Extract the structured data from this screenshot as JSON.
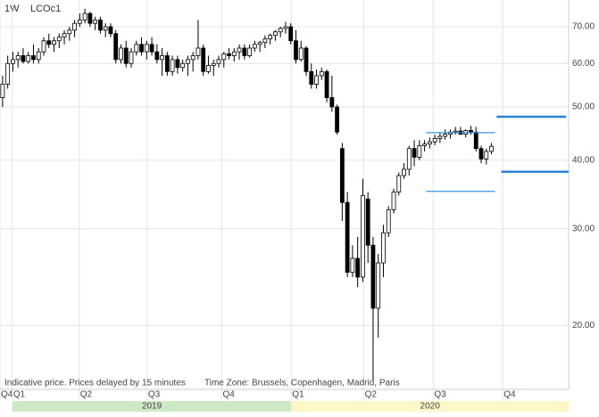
{
  "chart_data": {
    "type": "candlestick",
    "interval": "1W",
    "symbol": "LCOc1",
    "notes": [
      "Indicative price. Prices delayed by 15 minutes",
      "Time Zone: Brussels, Copenhagen, Madrid, Paris"
    ],
    "log_scale": true,
    "grid": true,
    "up_color": "#ffffff",
    "down_color": "#000000",
    "xlim": [
      -0.5,
      110
    ],
    "xticks": [
      {
        "value": -0.5,
        "label": "Q4"
      },
      {
        "value": 1.9,
        "label": "Q1"
      },
      {
        "value": 14.9,
        "label": "Q2"
      },
      {
        "value": 28.1,
        "label": "Q3"
      },
      {
        "value": 42.6,
        "label": "Q4"
      },
      {
        "value": 56.1,
        "label": "Q1"
      },
      {
        "value": 70.2,
        "label": "Q2"
      },
      {
        "value": 83.7,
        "label": "Q3"
      },
      {
        "value": 97.2,
        "label": "Q4"
      }
    ],
    "periods": [
      {
        "label": "2019",
        "start": 1.9,
        "end": 56.1,
        "color": "#cfe8c6"
      },
      {
        "label": "2020",
        "start": 56.1,
        "end": 110,
        "color": "#fbf7c6"
      }
    ],
    "ylim": [
      15.3,
      78.3
    ],
    "yticks": [
      {
        "value": 20,
        "label": "20.00"
      },
      {
        "value": 30,
        "label": "30.00"
      },
      {
        "value": 40,
        "label": "40.00"
      },
      {
        "value": 50,
        "label": "50.00"
      },
      {
        "value": 60,
        "label": "60.00"
      },
      {
        "value": 70,
        "label": "70.00"
      }
    ],
    "open": [
      52,
      55,
      60,
      61,
      62,
      60.5,
      62,
      61,
      63,
      66,
      65,
      66,
      67,
      68,
      69,
      71,
      72,
      74,
      71,
      72,
      69,
      70,
      68,
      61,
      64,
      60,
      63,
      65,
      63,
      65,
      63,
      61,
      62,
      58,
      61,
      59,
      60,
      61,
      62,
      64,
      58,
      59.5,
      60,
      61,
      62.5,
      62,
      63,
      64,
      62,
      64,
      65,
      65.5,
      66.5,
      67.5,
      68.5,
      69.5,
      70,
      66,
      61,
      64,
      58,
      55,
      57,
      58,
      52,
      50,
      42,
      33.5,
      25,
      26.5,
      24.5,
      34,
      28,
      21.5,
      26,
      29.5,
      32.5,
      35,
      37.5,
      38.5,
      42,
      40.5,
      42.5,
      42.8,
      43.2,
      43.8,
      44.2,
      44.6,
      45,
      45.2,
      44.6,
      45.3,
      45,
      42,
      40.2,
      41.5
    ],
    "high": [
      57,
      62,
      63,
      63,
      64,
      63,
      65,
      64,
      67,
      68,
      67,
      68,
      69,
      70,
      72,
      74,
      75.5,
      74.5,
      73,
      73,
      71,
      71,
      69,
      65,
      66,
      64,
      66,
      67,
      66,
      67,
      65,
      64,
      63,
      62,
      62,
      61,
      62,
      63,
      72,
      65,
      62,
      61,
      62,
      63,
      64,
      64,
      65,
      65,
      65,
      66,
      66,
      67.5,
      68,
      69,
      70,
      71.5,
      71,
      69,
      66,
      64.5,
      60,
      58.5,
      59,
      58.5,
      57,
      50.5,
      43,
      35,
      28,
      29,
      37,
      35,
      29,
      27,
      30.5,
      33,
      35.5,
      38,
      39.5,
      42.5,
      43.5,
      43.5,
      43.5,
      44,
      44.5,
      45,
      45.5,
      45.5,
      46,
      46,
      45.5,
      46.2,
      46,
      42.5,
      42,
      43
    ],
    "low": [
      50,
      54,
      58,
      59,
      60,
      60,
      60,
      60,
      62,
      64,
      63,
      64,
      65,
      66,
      67,
      70,
      71,
      70,
      69,
      68,
      67,
      67,
      60,
      60,
      59,
      59,
      62,
      62,
      61,
      62,
      60,
      57,
      57,
      57,
      57.5,
      58,
      57,
      58,
      61,
      57,
      57.5,
      57,
      59,
      59,
      61,
      60.5,
      61,
      61,
      61.5,
      63,
      63,
      64,
      65,
      66,
      67,
      68,
      65,
      60,
      60.5,
      57,
      54,
      54,
      56,
      51,
      49,
      44.5,
      31,
      24.5,
      24.5,
      23.5,
      24,
      26,
      15.9,
      19,
      24.5,
      29,
      32,
      34.5,
      37,
      37.5,
      39,
      40,
      41.5,
      42,
      42.6,
      43,
      43.6,
      43.8,
      44.5,
      44.5,
      44,
      44.5,
      41.5,
      39.5,
      39.3,
      41
    ],
    "close": [
      55,
      60,
      61,
      62,
      60.5,
      62,
      61,
      63,
      66,
      65,
      66,
      67,
      68,
      69,
      71,
      72,
      74,
      71,
      72,
      69,
      70,
      68,
      61,
      64,
      60,
      63,
      65,
      63,
      65,
      63,
      61,
      62,
      58,
      61,
      59,
      60,
      61,
      62,
      64,
      58,
      59.5,
      60,
      61,
      62.5,
      62,
      63,
      64,
      62,
      64,
      65,
      65.5,
      66.5,
      67.5,
      68.5,
      69.5,
      70,
      66,
      61,
      64,
      58,
      55,
      57,
      58,
      52,
      50,
      45,
      33.5,
      25,
      26.5,
      24.5,
      34.5,
      28,
      21.5,
      26,
      29.5,
      32.5,
      35,
      37.5,
      38.5,
      42,
      40.5,
      42.5,
      42.8,
      43.2,
      43.8,
      44.2,
      44.6,
      45,
      45.2,
      44.6,
      45.3,
      45,
      42,
      40.2,
      41.5,
      42.4
    ],
    "levels": [
      {
        "value": 44.9,
        "from": 82.3,
        "to": 95.7,
        "style": "thin",
        "color": "#3d95de"
      },
      {
        "value": 35.1,
        "from": 82.3,
        "to": 95.7,
        "style": "thin",
        "color": "#3d95de"
      },
      {
        "value": 48,
        "from": 96,
        "to": 109.5,
        "style": "thick",
        "color": "#2b86cf"
      },
      {
        "value": 38.1,
        "from": 96.9,
        "to": 110,
        "style": "thick",
        "color": "#2b86cf"
      }
    ]
  }
}
